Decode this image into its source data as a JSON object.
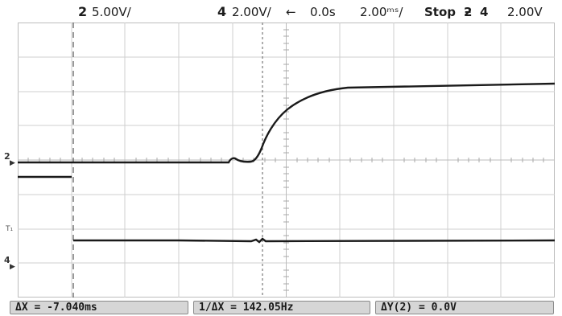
{
  "status_bar": {
    "ch2_number": "2",
    "ch2_scale": "5.00V/",
    "ch4_number": "4",
    "ch4_scale": "2.00V/",
    "delay_arrow": "←",
    "delay_value": "0.0s",
    "time_scale": "2.00ᵐˢ/",
    "run_state": "Stop",
    "trigger_icon": "ƻ",
    "trigger_channel": "4",
    "trigger_level": "2.00V"
  },
  "markers": {
    "ch2_label": "2",
    "ch2_arrow": "▶",
    "trigger_label": "T₁",
    "ch4_label": "4",
    "ch4_arrow": "▶"
  },
  "measurements": {
    "delta_x": "ΔX = -7.040ms",
    "inverse_delta_x": "1/ΔX = 142.05Hz",
    "delta_y": "ΔY(2) = 0.0V"
  },
  "colors": {
    "background": "#ffffff",
    "grid": "#c8c8c8",
    "trace": "#1a1a1a",
    "softkey_bg": "#d6d6d6"
  }
}
